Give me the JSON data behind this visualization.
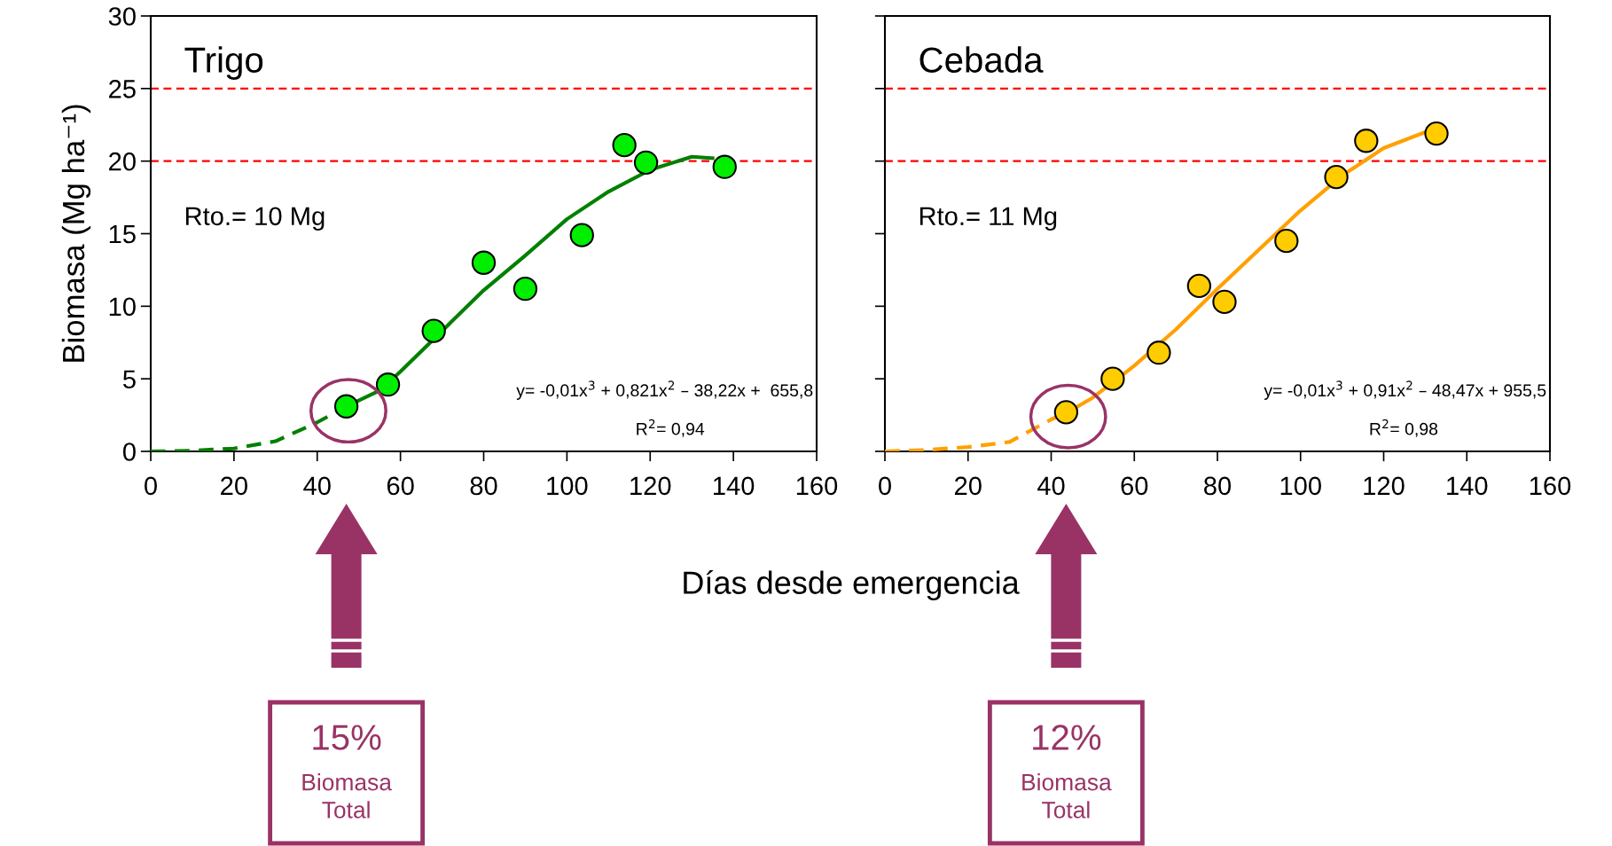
{
  "chart_data": [
    {
      "type": "scatter",
      "title": "Trigo",
      "ylabel": "Biomasa (Mg ha⁻¹)",
      "xlabel": "Días desde emergencia",
      "xlim": [
        0,
        160
      ],
      "xticks": [
        0,
        20,
        40,
        60,
        80,
        100,
        120,
        140,
        160
      ],
      "ylim": [
        0,
        30
      ],
      "yticks": [
        0,
        5,
        10,
        15,
        20,
        25,
        30
      ],
      "grid": false,
      "series": [
        {
          "marker": "circle",
          "color": "#00ee00",
          "x": [
            47,
            57,
            68,
            80,
            90,
            103.6,
            113.8,
            119,
            137.9
          ],
          "values": [
            3.1,
            4.6,
            8.3,
            13.0,
            11.2,
            14.9,
            21.1,
            19.9,
            19.6
          ]
        },
        {
          "type": "line",
          "color": "#008000",
          "line_style": "dashed",
          "x": [
            0,
            10,
            20,
            30,
            40,
            47
          ],
          "values": [
            0,
            0.05,
            0.2,
            0.7,
            2.0,
            3.1
          ]
        },
        {
          "type": "line",
          "color": "#008000",
          "line_style": "solid",
          "x": [
            47,
            55,
            60,
            70,
            80,
            90,
            100,
            110,
            120,
            130,
            135
          ],
          "values": [
            3.1,
            4.2,
            5.5,
            8.3,
            11.1,
            13.5,
            16.0,
            17.9,
            19.4,
            20.3,
            20.2
          ]
        }
      ],
      "ref_lines": [
        {
          "axis": "y",
          "value": 25,
          "color": "#ff0000",
          "line_style": "dashed"
        },
        {
          "axis": "y",
          "value": 20,
          "color": "#ff0000",
          "line_style": "dashed"
        }
      ],
      "annotations": [
        "Rto.= 10 Mg",
        "y= -0,01x$^{3}$ + 0,821x$^{2}$ – 38,22x +  655,8",
        "R$^{2}$= 0,94",
        "15%",
        "Biomasa Total"
      ]
    },
    {
      "type": "scatter",
      "title": "Cebada",
      "tick_labels": "x",
      "xlim": [
        0,
        160
      ],
      "xticks": [
        0,
        20,
        40,
        60,
        80,
        100,
        120,
        140,
        160
      ],
      "ylim": [
        0,
        30
      ],
      "yticks": [
        0,
        5,
        10,
        15,
        20,
        25,
        30
      ],
      "grid": false,
      "series": [
        {
          "marker": "circle",
          "color": "#ffcc00",
          "x": [
            43.6,
            54.8,
            65.9,
            75.6,
            81.7,
            96.6,
            108.6,
            115.8,
            132.7
          ],
          "values": [
            2.7,
            5.0,
            6.8,
            11.4,
            10.3,
            14.5,
            18.9,
            21.4,
            21.9
          ]
        },
        {
          "type": "line",
          "color": "#ffa000",
          "line_style": "dashed",
          "x": [
            0,
            10,
            20,
            30,
            40,
            44
          ],
          "values": [
            0,
            0.1,
            0.3,
            0.65,
            2.2,
            2.7
          ]
        },
        {
          "type": "line",
          "color": "#ffa000",
          "line_style": "solid",
          "x": [
            44,
            50,
            60,
            70,
            80,
            90,
            100,
            110,
            120,
            130
          ],
          "values": [
            2.7,
            3.7,
            5.9,
            8.4,
            11.2,
            13.9,
            16.6,
            19.0,
            20.9,
            22.0
          ]
        }
      ],
      "ref_lines": [
        {
          "axis": "y",
          "value": 25,
          "color": "#ff0000",
          "line_style": "dashed"
        },
        {
          "axis": "y",
          "value": 20,
          "color": "#ff0000",
          "line_style": "dashed"
        }
      ],
      "annotations": [
        "Rto.= 11 Mg",
        "y= -0,01x$^{3}$ + 0,91x$^{2}$ – 48,47x + 955,5",
        "R$^{2}$= 0,98",
        "12%",
        "Biomasa Total"
      ]
    }
  ]
}
